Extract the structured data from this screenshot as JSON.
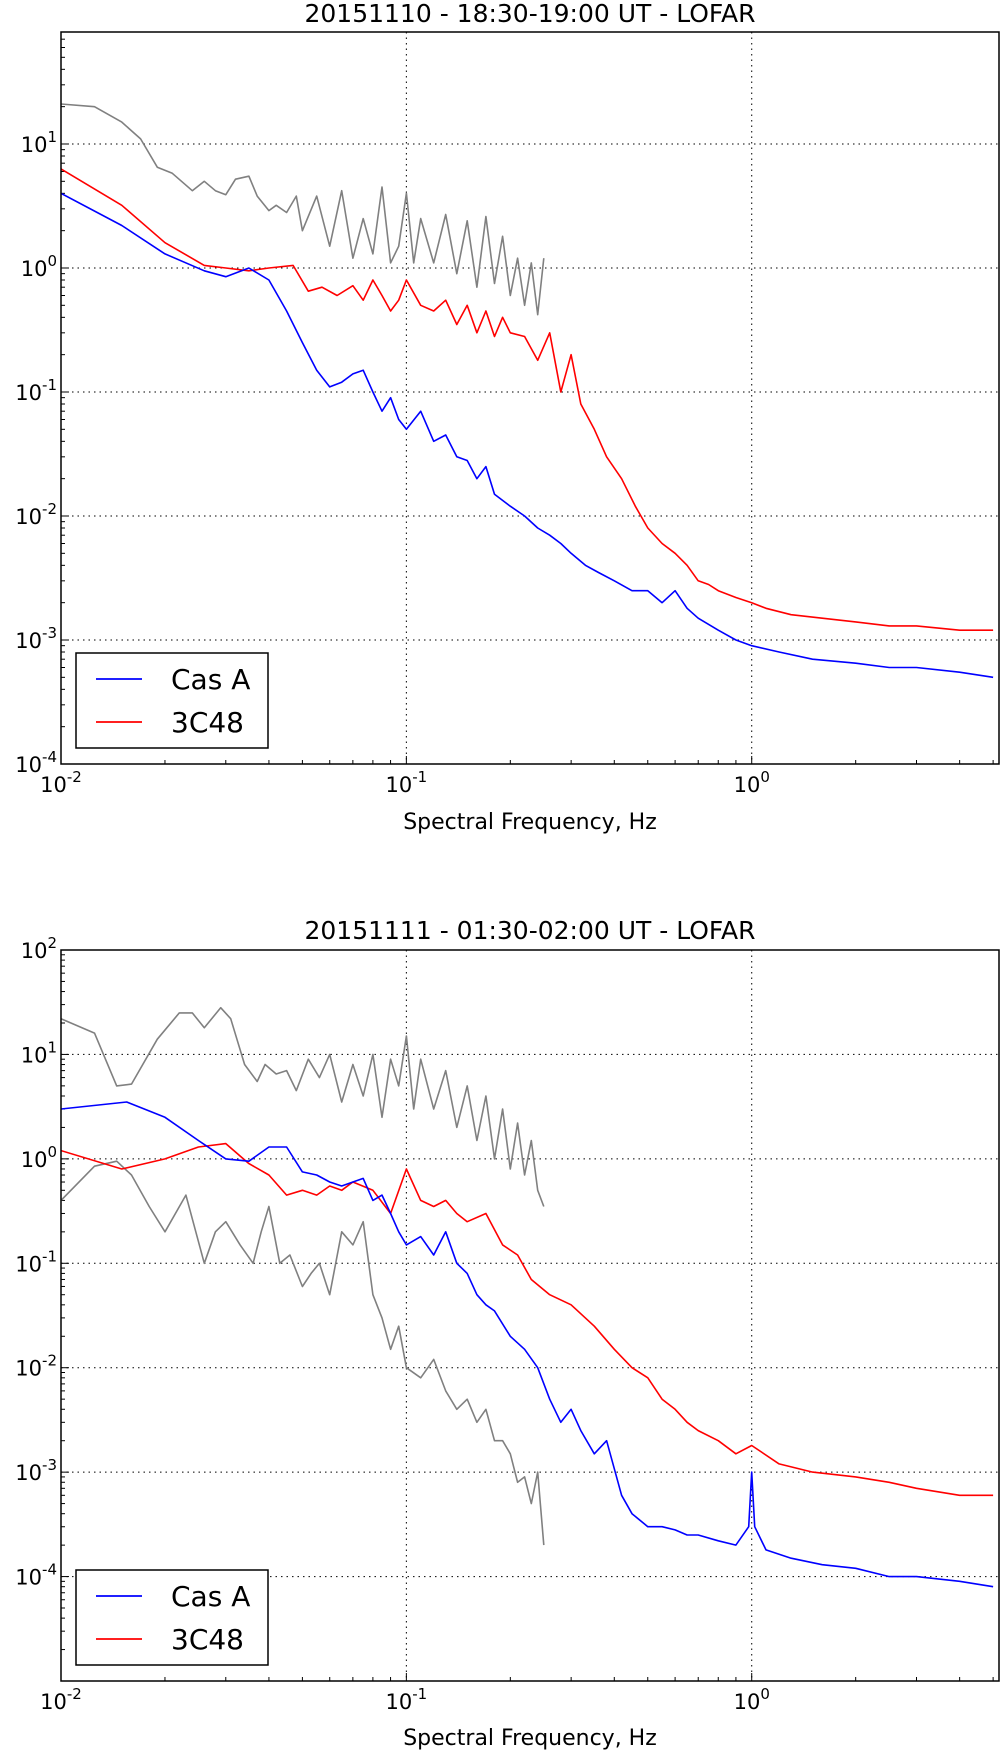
{
  "chart_data": [
    {
      "type": "line",
      "title": "20151110 - 18:30-19:00 UT - LOFAR",
      "xlabel": "Spectral Frequency, Hz",
      "ylabel": "",
      "xscale": "log",
      "yscale": "log",
      "xlim": [
        0.01,
        5.2
      ],
      "ylim": [
        0.0001,
        80
      ],
      "grid": true,
      "legend_position": "bottom-left",
      "x_tick_labels": [
        {
          "base": "10",
          "exp": "-2"
        },
        {
          "base": "10",
          "exp": "-1"
        },
        {
          "base": "10",
          "exp": "0"
        }
      ],
      "y_tick_labels": [
        {
          "base": "10",
          "exp": "-4"
        },
        {
          "base": "10",
          "exp": "-3"
        },
        {
          "base": "10",
          "exp": "-2"
        },
        {
          "base": "10",
          "exp": "-1"
        },
        {
          "base": "10",
          "exp": "0"
        },
        {
          "base": "10",
          "exp": "1"
        }
      ],
      "series": [
        {
          "name": "",
          "color": "#808080",
          "x": [
            0.01,
            0.0125,
            0.015,
            0.017,
            0.019,
            0.021,
            0.024,
            0.026,
            0.028,
            0.03,
            0.032,
            0.035,
            0.037,
            0.04,
            0.042,
            0.045,
            0.048,
            0.05,
            0.055,
            0.06,
            0.065,
            0.07,
            0.075,
            0.08,
            0.085,
            0.09,
            0.095,
            0.1,
            0.105,
            0.11,
            0.12,
            0.13,
            0.14,
            0.15,
            0.16,
            0.17,
            0.18,
            0.19,
            0.2,
            0.21,
            0.22,
            0.23,
            0.24,
            0.25
          ],
          "y": [
            21,
            20,
            15,
            11,
            6.5,
            5.8,
            4.2,
            5,
            4.2,
            3.9,
            5.2,
            5.5,
            3.8,
            2.9,
            3.2,
            2.8,
            3.8,
            2,
            3.8,
            1.5,
            4.2,
            1.2,
            2.5,
            1.3,
            4.5,
            1.1,
            1.5,
            4,
            1.1,
            2.5,
            1.1,
            2.7,
            0.9,
            2.4,
            0.7,
            2.6,
            0.75,
            1.8,
            0.6,
            1.2,
            0.5,
            1.1,
            0.42,
            1.2
          ]
        },
        {
          "name": "3C48",
          "color": "#ff0000",
          "x": [
            0.01,
            0.015,
            0.02,
            0.026,
            0.03,
            0.035,
            0.04,
            0.047,
            0.052,
            0.057,
            0.063,
            0.07,
            0.075,
            0.08,
            0.085,
            0.09,
            0.095,
            0.1,
            0.11,
            0.12,
            0.13,
            0.14,
            0.15,
            0.16,
            0.17,
            0.18,
            0.19,
            0.2,
            0.22,
            0.24,
            0.26,
            0.28,
            0.3,
            0.32,
            0.35,
            0.38,
            0.42,
            0.46,
            0.5,
            0.55,
            0.6,
            0.65,
            0.7,
            0.75,
            0.8,
            0.9,
            1.0,
            1.1,
            1.3,
            1.6,
            2.0,
            2.5,
            3.0,
            4.0,
            5.0
          ],
          "y": [
            6.3,
            3.2,
            1.6,
            1.05,
            1.0,
            0.95,
            1.0,
            1.05,
            0.65,
            0.7,
            0.6,
            0.72,
            0.55,
            0.8,
            0.6,
            0.45,
            0.55,
            0.8,
            0.5,
            0.45,
            0.55,
            0.35,
            0.5,
            0.3,
            0.45,
            0.28,
            0.4,
            0.3,
            0.28,
            0.18,
            0.3,
            0.1,
            0.2,
            0.08,
            0.05,
            0.03,
            0.02,
            0.012,
            0.008,
            0.006,
            0.005,
            0.004,
            0.003,
            0.0028,
            0.0025,
            0.0022,
            0.002,
            0.0018,
            0.0016,
            0.0015,
            0.0014,
            0.0013,
            0.0013,
            0.0012,
            0.0012
          ]
        },
        {
          "name": "Cas A",
          "color": "#0000ff",
          "x": [
            0.01,
            0.015,
            0.02,
            0.026,
            0.03,
            0.035,
            0.04,
            0.045,
            0.05,
            0.055,
            0.06,
            0.065,
            0.07,
            0.075,
            0.08,
            0.085,
            0.09,
            0.095,
            0.1,
            0.11,
            0.12,
            0.13,
            0.14,
            0.15,
            0.16,
            0.17,
            0.18,
            0.2,
            0.22,
            0.24,
            0.26,
            0.28,
            0.3,
            0.33,
            0.36,
            0.4,
            0.45,
            0.5,
            0.55,
            0.6,
            0.65,
            0.7,
            0.8,
            0.9,
            1.0,
            1.2,
            1.5,
            2.0,
            2.5,
            3.0,
            4.0,
            5.0
          ],
          "y": [
            4,
            2.2,
            1.3,
            0.95,
            0.85,
            1.0,
            0.8,
            0.45,
            0.25,
            0.15,
            0.11,
            0.12,
            0.14,
            0.15,
            0.1,
            0.07,
            0.09,
            0.06,
            0.05,
            0.07,
            0.04,
            0.045,
            0.03,
            0.028,
            0.02,
            0.025,
            0.015,
            0.012,
            0.01,
            0.008,
            0.007,
            0.006,
            0.005,
            0.004,
            0.0035,
            0.003,
            0.0025,
            0.0025,
            0.002,
            0.0025,
            0.0018,
            0.0015,
            0.0012,
            0.001,
            0.0009,
            0.0008,
            0.0007,
            0.00065,
            0.0006,
            0.0006,
            0.00055,
            0.0005
          ]
        }
      ]
    },
    {
      "type": "line",
      "title": "20151111 - 01:30-02:00 UT - LOFAR",
      "xlabel": "Spectral Frequency, Hz",
      "ylabel": "",
      "xscale": "log",
      "yscale": "log",
      "xlim": [
        0.01,
        5.2
      ],
      "ylim": [
        1e-05,
        100
      ],
      "grid": true,
      "legend_position": "bottom-left",
      "x_tick_labels": [
        {
          "base": "10",
          "exp": "-2"
        },
        {
          "base": "10",
          "exp": "-1"
        },
        {
          "base": "10",
          "exp": "0"
        }
      ],
      "y_tick_labels": [
        {
          "base": "10",
          "exp": "-4"
        },
        {
          "base": "10",
          "exp": "-3"
        },
        {
          "base": "10",
          "exp": "-2"
        },
        {
          "base": "10",
          "exp": "-1"
        },
        {
          "base": "10",
          "exp": "0"
        },
        {
          "base": "10",
          "exp": "1"
        },
        {
          "base": "10",
          "exp": "2"
        }
      ],
      "series": [
        {
          "name": "",
          "color": "#808080",
          "x": [
            0.01,
            0.0125,
            0.0145,
            0.016,
            0.019,
            0.022,
            0.024,
            0.026,
            0.029,
            0.031,
            0.034,
            0.037,
            0.039,
            0.042,
            0.045,
            0.048,
            0.052,
            0.056,
            0.06,
            0.065,
            0.07,
            0.075,
            0.08,
            0.085,
            0.09,
            0.095,
            0.1,
            0.105,
            0.11,
            0.12,
            0.13,
            0.14,
            0.15,
            0.16,
            0.17,
            0.18,
            0.19,
            0.2,
            0.21,
            0.22,
            0.23,
            0.24,
            0.25
          ],
          "y": [
            22,
            16,
            5,
            5.2,
            14,
            25,
            25,
            18,
            28,
            22,
            8,
            5.5,
            8,
            6.5,
            7,
            4.5,
            9,
            6,
            10,
            3.5,
            8,
            4,
            10,
            2.5,
            9,
            5,
            15,
            3,
            9,
            3,
            7,
            2,
            5,
            1.5,
            4,
            1,
            3,
            0.8,
            2.2,
            0.7,
            1.5,
            0.5,
            0.35
          ]
        },
        {
          "name": "",
          "color": "#808080",
          "x": [
            0.01,
            0.0125,
            0.0145,
            0.016,
            0.018,
            0.02,
            0.023,
            0.026,
            0.028,
            0.03,
            0.033,
            0.036,
            0.038,
            0.04,
            0.043,
            0.046,
            0.05,
            0.053,
            0.056,
            0.06,
            0.065,
            0.07,
            0.075,
            0.08,
            0.085,
            0.09,
            0.095,
            0.1,
            0.11,
            0.12,
            0.13,
            0.14,
            0.15,
            0.16,
            0.17,
            0.18,
            0.19,
            0.2,
            0.21,
            0.22,
            0.23,
            0.24,
            0.25
          ],
          "y": [
            0.4,
            0.85,
            0.95,
            0.7,
            0.35,
            0.2,
            0.45,
            0.1,
            0.2,
            0.25,
            0.15,
            0.1,
            0.2,
            0.35,
            0.1,
            0.12,
            0.06,
            0.08,
            0.1,
            0.05,
            0.2,
            0.15,
            0.25,
            0.05,
            0.03,
            0.015,
            0.025,
            0.01,
            0.008,
            0.012,
            0.006,
            0.004,
            0.005,
            0.003,
            0.004,
            0.002,
            0.002,
            0.0015,
            0.0008,
            0.0009,
            0.0005,
            0.001,
            0.0002
          ]
        },
        {
          "name": "3C48",
          "color": "#ff0000",
          "x": [
            0.01,
            0.015,
            0.02,
            0.025,
            0.03,
            0.035,
            0.04,
            0.045,
            0.05,
            0.055,
            0.06,
            0.065,
            0.07,
            0.08,
            0.09,
            0.1,
            0.11,
            0.12,
            0.13,
            0.14,
            0.15,
            0.17,
            0.19,
            0.21,
            0.23,
            0.26,
            0.3,
            0.35,
            0.4,
            0.45,
            0.5,
            0.55,
            0.6,
            0.65,
            0.7,
            0.8,
            0.9,
            1.0,
            1.2,
            1.5,
            2.0,
            2.5,
            3.0,
            4.0,
            5.0
          ],
          "y": [
            1.2,
            0.8,
            1.0,
            1.3,
            1.4,
            0.9,
            0.7,
            0.45,
            0.5,
            0.45,
            0.55,
            0.5,
            0.6,
            0.5,
            0.3,
            0.8,
            0.4,
            0.35,
            0.4,
            0.3,
            0.25,
            0.3,
            0.15,
            0.12,
            0.07,
            0.05,
            0.04,
            0.025,
            0.015,
            0.01,
            0.008,
            0.005,
            0.004,
            0.003,
            0.0025,
            0.002,
            0.0015,
            0.0018,
            0.0012,
            0.001,
            0.0009,
            0.0008,
            0.0007,
            0.0006,
            0.0006
          ]
        },
        {
          "name": "Cas A",
          "color": "#0000ff",
          "x": [
            0.01,
            0.0155,
            0.02,
            0.025,
            0.03,
            0.035,
            0.04,
            0.045,
            0.05,
            0.055,
            0.06,
            0.065,
            0.07,
            0.075,
            0.08,
            0.085,
            0.09,
            0.095,
            0.1,
            0.11,
            0.12,
            0.13,
            0.14,
            0.15,
            0.16,
            0.17,
            0.18,
            0.2,
            0.22,
            0.24,
            0.26,
            0.28,
            0.3,
            0.32,
            0.35,
            0.38,
            0.42,
            0.45,
            0.5,
            0.55,
            0.6,
            0.65,
            0.7,
            0.8,
            0.9,
            0.98,
            1.0,
            1.02,
            1.1,
            1.3,
            1.6,
            2.0,
            2.5,
            3.0,
            4.0,
            5.0
          ],
          "y": [
            3.0,
            3.5,
            2.5,
            1.5,
            1.0,
            0.95,
            1.3,
            1.3,
            0.75,
            0.7,
            0.6,
            0.55,
            0.6,
            0.65,
            0.4,
            0.45,
            0.3,
            0.2,
            0.15,
            0.18,
            0.12,
            0.2,
            0.1,
            0.08,
            0.05,
            0.04,
            0.035,
            0.02,
            0.015,
            0.01,
            0.005,
            0.003,
            0.004,
            0.0025,
            0.0015,
            0.002,
            0.0006,
            0.0004,
            0.0003,
            0.0003,
            0.00028,
            0.00025,
            0.00025,
            0.00022,
            0.0002,
            0.0003,
            0.001,
            0.0003,
            0.00018,
            0.00015,
            0.00013,
            0.00012,
            0.0001,
            0.0001,
            9e-05,
            8e-05
          ]
        }
      ]
    }
  ]
}
